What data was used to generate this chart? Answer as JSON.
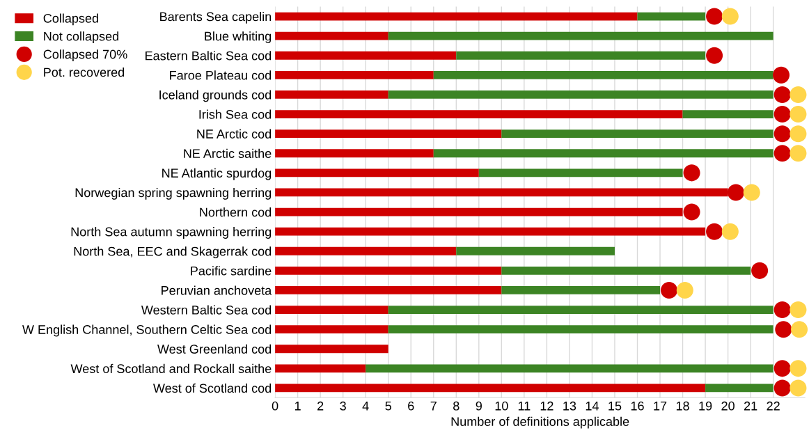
{
  "chart_data": {
    "type": "bar",
    "orientation": "horizontal",
    "stacked": true,
    "xlabel": "Number of definitions applicable",
    "categories": [
      "Barents Sea capelin",
      "Blue whiting",
      "Eastern Baltic Sea cod",
      "Faroe Plateau cod",
      "Iceland grounds cod",
      "Irish Sea cod",
      "NE Arctic cod",
      "NE Arctic saithe",
      "NE Atlantic spurdog",
      "Norwegian spring spawning herring",
      "Northern cod",
      "North Sea autumn spawning herring",
      "North Sea, EEC and Skagerrak cod",
      "Pacific sardine",
      "Peruvian anchoveta",
      "Western Baltic Sea cod",
      "W English Channel, Southern Celtic Sea cod",
      "West Greenland cod",
      "West of Scotland and Rockall saithe",
      "West of Scotland cod"
    ],
    "series": [
      {
        "name": "Collapsed",
        "color": "#d00000",
        "values": [
          16,
          5,
          8,
          7,
          5,
          18,
          10,
          7,
          9,
          20,
          18,
          19,
          8,
          10,
          10,
          5,
          5,
          5,
          4,
          19
        ]
      },
      {
        "name": "Not collapsed",
        "color": "#3c8424",
        "values": [
          3,
          17,
          11,
          15,
          17,
          4,
          12,
          15,
          9,
          0,
          0,
          0,
          7,
          11,
          7,
          17,
          17,
          0,
          18,
          3
        ]
      },
      {
        "name": "Collapsed 70%",
        "type": "scatter",
        "color": "#d00000",
        "values": [
          19.4,
          null,
          19.4,
          22.35,
          22.4,
          22.4,
          22.4,
          22.4,
          18.4,
          20.35,
          18.4,
          19.4,
          null,
          21.4,
          17.4,
          22.4,
          22.45,
          null,
          22.4,
          22.4
        ]
      },
      {
        "name": "Pot. recovered",
        "type": "scatter",
        "color": "#ffd54a",
        "values": [
          20.1,
          null,
          null,
          null,
          23.1,
          23.1,
          23.1,
          23.1,
          null,
          21.05,
          null,
          20.1,
          null,
          null,
          18.1,
          23.1,
          23.15,
          null,
          23.1,
          23.1
        ]
      }
    ],
    "xlim": [
      0,
      23.4
    ],
    "xticks": [
      0,
      1,
      2,
      3,
      4,
      5,
      6,
      7,
      8,
      9,
      10,
      11,
      12,
      13,
      14,
      15,
      16,
      17,
      18,
      19,
      20,
      21,
      22
    ],
    "grid": "x",
    "legend": "top left",
    "marker": "circle"
  }
}
